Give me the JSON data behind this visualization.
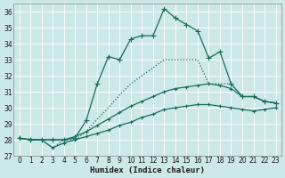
{
  "xlabel": "Humidex (Indice chaleur)",
  "bg_color": "#cce8e8",
  "grid_color": "#b0d8d8",
  "line_color": "#1a6b5a",
  "xlim": [
    -0.5,
    23.5
  ],
  "ylim": [
    27,
    36.5
  ],
  "yticks": [
    27,
    28,
    29,
    30,
    31,
    32,
    33,
    34,
    35,
    36
  ],
  "xticks": [
    0,
    1,
    2,
    3,
    4,
    5,
    6,
    7,
    8,
    9,
    10,
    11,
    12,
    13,
    14,
    15,
    16,
    17,
    18,
    19,
    20,
    21,
    22,
    23
  ],
  "series": [
    {
      "x": [
        0,
        1,
        2,
        3,
        4,
        5,
        6,
        7,
        8,
        9,
        10,
        11,
        12,
        13,
        14,
        15,
        16,
        17,
        18,
        19,
        20,
        21,
        22,
        23
      ],
      "y": [
        28.1,
        28.0,
        28.0,
        28.0,
        28.0,
        28.1,
        29.2,
        31.5,
        33.2,
        33.0,
        34.3,
        34.5,
        34.5,
        36.2,
        35.6,
        35.2,
        34.8,
        33.1,
        33.5,
        31.5,
        30.7,
        30.7,
        30.4,
        30.3
      ],
      "marker": "+",
      "linestyle": "-",
      "lw": 0.9,
      "ms": 4
    },
    {
      "x": [
        0,
        2,
        3,
        4,
        5,
        6,
        7,
        8,
        9,
        10,
        11,
        12,
        13,
        14,
        15,
        16,
        17,
        18,
        19,
        20,
        21,
        22,
        23
      ],
      "y": [
        28.1,
        28.0,
        27.5,
        28.0,
        28.0,
        28.5,
        29.3,
        30.0,
        30.8,
        31.5,
        32.0,
        32.5,
        33.0,
        33.0,
        33.0,
        33.0,
        31.5,
        31.5,
        31.5,
        30.7,
        30.7,
        30.4,
        30.3
      ],
      "marker": null,
      "linestyle": "dotted",
      "lw": 0.9,
      "ms": 0
    },
    {
      "x": [
        0,
        1,
        2,
        3,
        4,
        5,
        6,
        7,
        8,
        9,
        10,
        11,
        12,
        13,
        14,
        15,
        16,
        17,
        18,
        19,
        20,
        21,
        22,
        23
      ],
      "y": [
        28.1,
        28.0,
        28.0,
        28.0,
        28.0,
        28.2,
        28.5,
        28.9,
        29.3,
        29.7,
        30.1,
        30.4,
        30.7,
        31.0,
        31.2,
        31.3,
        31.4,
        31.5,
        31.4,
        31.2,
        30.7,
        30.7,
        30.4,
        30.3
      ],
      "marker": "+",
      "linestyle": "-",
      "lw": 0.9,
      "ms": 3
    },
    {
      "x": [
        0,
        1,
        2,
        3,
        4,
        5,
        6,
        7,
        8,
        9,
        10,
        11,
        12,
        13,
        14,
        15,
        16,
        17,
        18,
        19,
        20,
        21,
        22,
        23
      ],
      "y": [
        28.1,
        28.0,
        28.0,
        27.5,
        27.8,
        28.0,
        28.2,
        28.4,
        28.6,
        28.9,
        29.1,
        29.4,
        29.6,
        29.9,
        30.0,
        30.1,
        30.2,
        30.2,
        30.1,
        30.0,
        29.9,
        29.8,
        29.9,
        30.0
      ],
      "marker": "+",
      "linestyle": "-",
      "lw": 0.9,
      "ms": 3
    }
  ]
}
